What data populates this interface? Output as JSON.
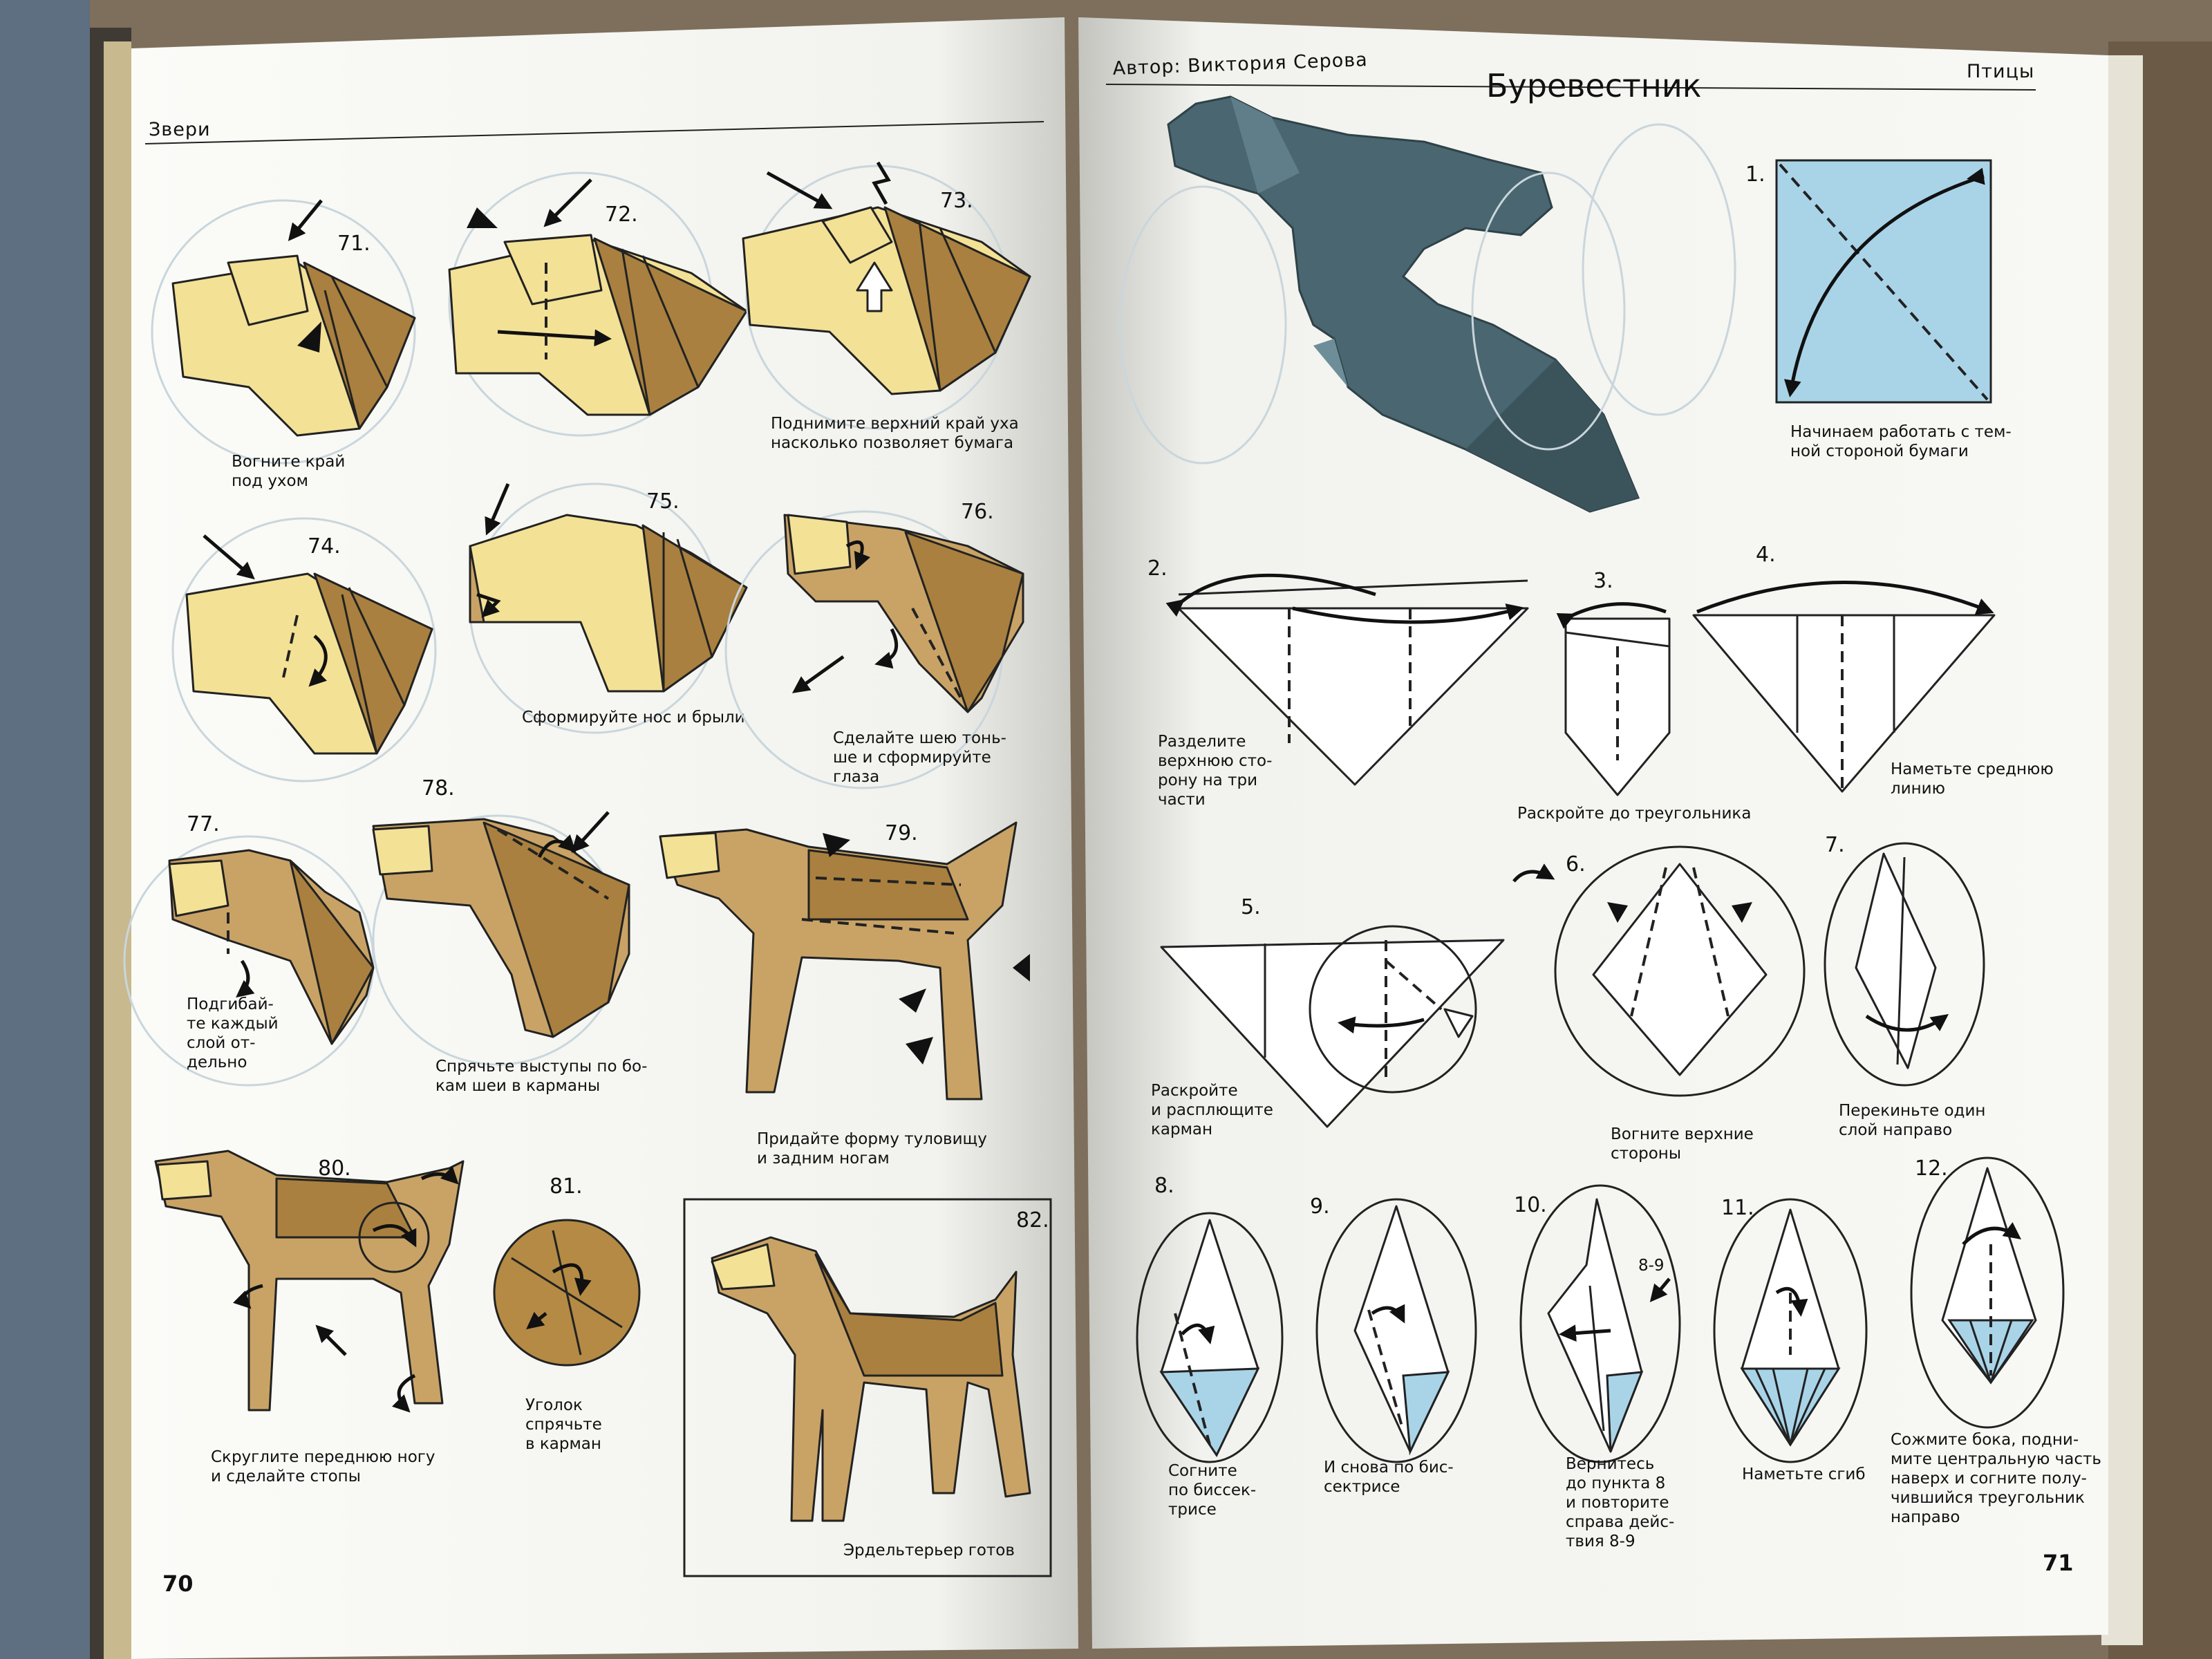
{
  "book": {
    "left_page": {
      "section": "Звери",
      "page_number": "70",
      "steps": [
        {
          "num": "71.",
          "caption_lines": [
            "Вогните край",
            "под ухом"
          ]
        },
        {
          "num": "72.",
          "caption_lines": []
        },
        {
          "num": "73.",
          "caption_lines": [
            "Поднимите верхний край уха",
            "насколько позволяет бумага"
          ]
        },
        {
          "num": "74.",
          "caption_lines": []
        },
        {
          "num": "75.",
          "caption_lines": [
            "Сформируйте нос и брыли"
          ]
        },
        {
          "num": "76.",
          "caption_lines": [
            "Сделайте шею тонь-",
            "ше и сформируйте",
            "глаза"
          ]
        },
        {
          "num": "77.",
          "caption_lines": [
            "Подгибай-",
            "те каждый",
            "слой от-",
            "дельно"
          ]
        },
        {
          "num": "78.",
          "caption_lines": [
            "Спрячьте выступы по бо-",
            "кам шеи в карманы"
          ]
        },
        {
          "num": "79.",
          "caption_lines": [
            "Придайте форму туловищу",
            "и задним ногам"
          ]
        },
        {
          "num": "80.",
          "caption_lines": [
            "Скруглите переднюю ногу",
            "и сделайте стопы"
          ]
        },
        {
          "num": "81.",
          "caption_lines": [
            "Уголок",
            "спрячьте",
            "в карман"
          ]
        },
        {
          "num": "82.",
          "caption_lines": [
            "Эрдельтерьер готов"
          ]
        }
      ]
    },
    "right_page": {
      "author": "Автор: Виктория Серова",
      "section": "Птицы",
      "title": "Буревестник",
      "page_number": "71",
      "steps": [
        {
          "num": "1.",
          "caption_lines": [
            "Начинаем работать с тем-",
            "ной стороной бумаги"
          ]
        },
        {
          "num": "2.",
          "caption_lines": [
            "Разделите",
            "верхнюю сто-",
            "рону на три",
            "части"
          ]
        },
        {
          "num": "3.",
          "caption_lines": []
        },
        {
          "num": "4.",
          "caption_lines": [
            "Наметьте среднюю",
            "линию"
          ]
        },
        {
          "num": "5.",
          "caption_lines": [
            "Раскройте",
            "и расплющите",
            "карман"
          ]
        },
        {
          "num": "6.",
          "caption_lines": [
            "Вогните верхние",
            "стороны"
          ]
        },
        {
          "num": "7.",
          "caption_lines": [
            "Перекиньте один",
            "слой направо"
          ]
        },
        {
          "num": "8.",
          "caption_lines": [
            "Согните",
            "по биссек-",
            "трисе"
          ]
        },
        {
          "num": "9.",
          "caption_lines": [
            "И снова по бис-",
            "сектрисе"
          ]
        },
        {
          "num": "10.",
          "caption_lines": [
            "Вернитесь",
            "до пункта 8",
            "и повторите",
            "справа дейс-",
            "твия 8-9"
          ]
        },
        {
          "num": "11.",
          "caption_lines": [
            "Наметьте сгиб"
          ]
        },
        {
          "num": "12.",
          "caption_lines": [
            "Сожмите бока, подни-",
            "мите центральную часть",
            "наверх и согните полу-",
            "чившийся треугольник",
            "направо"
          ]
        }
      ],
      "shared_caption": "Раскройте до треугольника",
      "marker_8_9": "8-9"
    }
  },
  "colors": {
    "paper_light": "#f3e196",
    "paper_dark": "#a9803f",
    "bird_blue": "#a9d4e8",
    "petrel_model": "#4a6670"
  }
}
